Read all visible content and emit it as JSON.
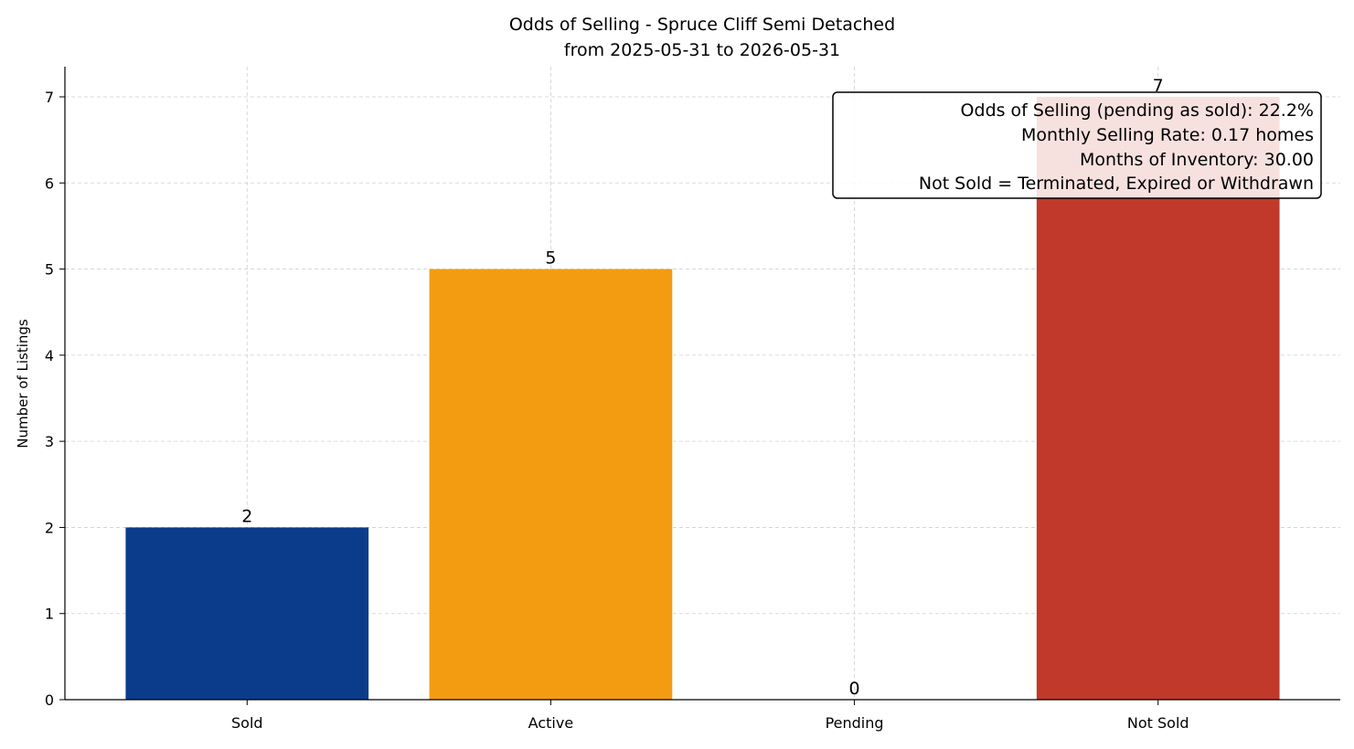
{
  "chart_data": {
    "type": "bar",
    "title": "Odds of Selling - Spruce Cliff Semi Detached",
    "subtitle": "from 2025-05-31 to 2026-05-31",
    "xlabel": "",
    "ylabel": "Number of Listings",
    "categories": [
      "Sold",
      "Active",
      "Pending",
      "Not Sold"
    ],
    "values": [
      2,
      5,
      0,
      7
    ],
    "data_labels": [
      "2",
      "5",
      "0",
      "7"
    ],
    "colors": [
      "#0b3c8c",
      "#f39c12",
      "#f39c12",
      "#c0392b"
    ],
    "ylim": [
      0,
      7.35
    ],
    "yticks": [
      0,
      1,
      2,
      3,
      4,
      5,
      6,
      7
    ],
    "grid": true,
    "legend": "none",
    "annotation": {
      "placement": "top-right",
      "lines": [
        "Odds of Selling (pending as sold): 22.2%",
        "Monthly Selling Rate: 0.17 homes",
        "Months of Inventory: 30.00",
        "Not Sold = Terminated, Expired or Withdrawn"
      ]
    }
  }
}
